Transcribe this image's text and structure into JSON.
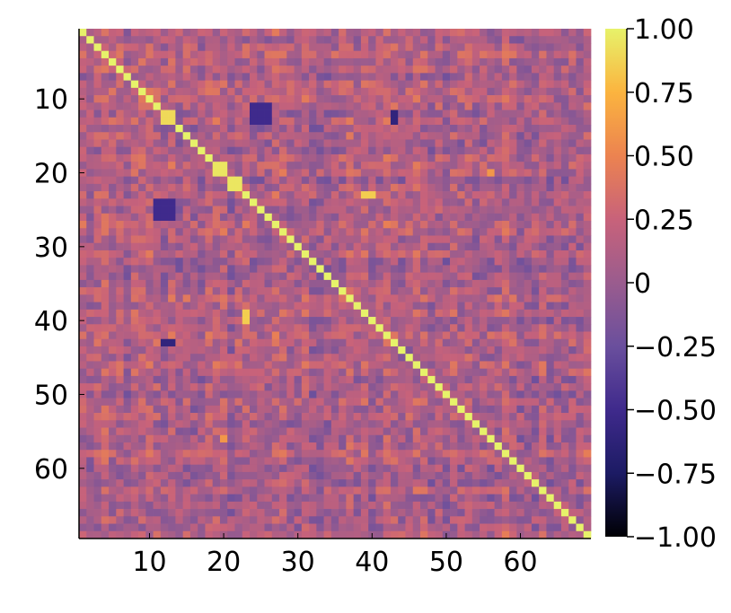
{
  "chart_data": {
    "type": "heatmap",
    "title": "",
    "xlabel": "",
    "ylabel": "",
    "n": 69,
    "x_range": [
      1,
      69
    ],
    "y_range": [
      1,
      69
    ],
    "y_axis_direction": "top-to-bottom",
    "x_ticks": [
      10,
      20,
      30,
      40,
      50,
      60
    ],
    "y_ticks": [
      10,
      20,
      30,
      40,
      50,
      60
    ],
    "diagonal_value": 1.0,
    "off_diagonal_typical_range": [
      -0.6,
      0.6
    ],
    "notable_blocks": [
      {
        "rows": [
          12,
          13
        ],
        "cols": [
          12,
          13
        ],
        "value": 0.9
      },
      {
        "rows": [
          19,
          20
        ],
        "cols": [
          19,
          20
        ],
        "value": 0.95
      },
      {
        "rows": [
          21,
          22
        ],
        "cols": [
          21,
          22
        ],
        "value": 0.95
      },
      {
        "rows": [
          11,
          13
        ],
        "cols": [
          24,
          26
        ],
        "value": -0.5
      },
      {
        "rows": [
          24,
          26
        ],
        "cols": [
          11,
          13
        ],
        "value": -0.5
      },
      {
        "rows": [
          12,
          13
        ],
        "cols": [
          43,
          43
        ],
        "value": -0.65
      },
      {
        "rows": [
          43,
          43
        ],
        "cols": [
          12,
          13
        ],
        "value": -0.6
      },
      {
        "rows": [
          23,
          23
        ],
        "cols": [
          40,
          40
        ],
        "value": 0.85
      },
      {
        "rows": [
          39,
          39
        ],
        "cols": [
          23,
          23
        ],
        "value": 0.85
      },
      {
        "rows": [
          20,
          20
        ],
        "cols": [
          56,
          56
        ],
        "value": 0.6
      },
      {
        "rows": [
          56,
          56
        ],
        "cols": [
          20,
          20
        ],
        "value": 0.6
      }
    ],
    "colorbar": {
      "min": -1.0,
      "max": 1.0,
      "ticks": [
        "1.00",
        "0.75",
        "0.50",
        "0.25",
        "0",
        "−0.25",
        "−0.50",
        "−0.75",
        "−1.00"
      ],
      "tick_values": [
        1.0,
        0.75,
        0.5,
        0.25,
        0.0,
        -0.25,
        -0.5,
        -0.75,
        -1.0
      ],
      "colormap": "thermal",
      "stops": [
        "#000004",
        "#1c1b64",
        "#3f2a8c",
        "#6a4f9d",
        "#9a5c8e",
        "#c8627a",
        "#ec8350",
        "#fbb43f",
        "#e7f26a"
      ]
    }
  }
}
